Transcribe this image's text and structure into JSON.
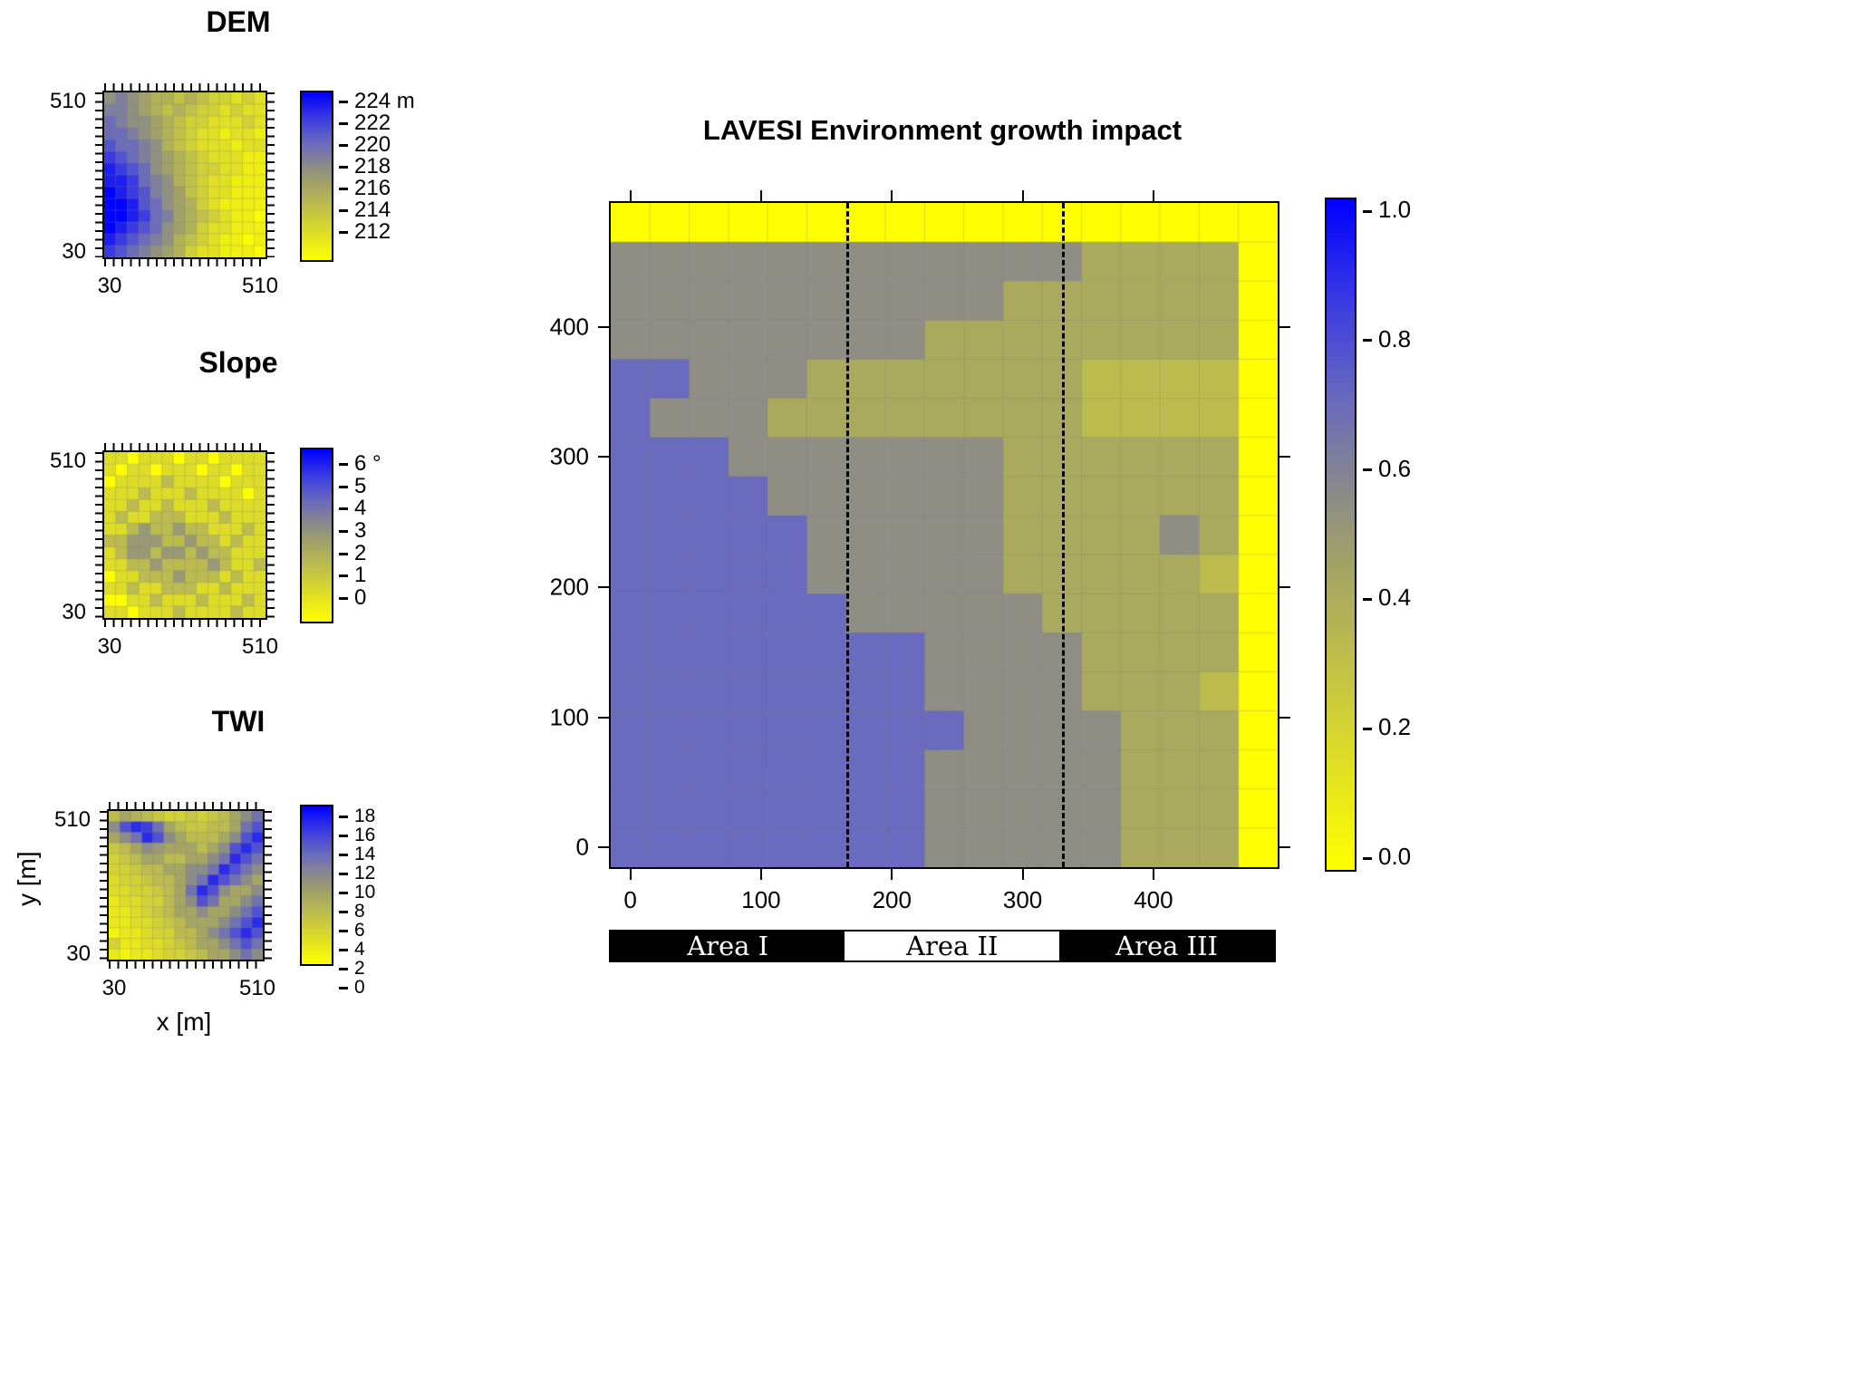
{
  "colormap_stops": [
    [
      0,
      "#FFFF00"
    ],
    [
      0.33,
      "#BCBC4E"
    ],
    [
      0.45,
      "#A4A465"
    ],
    [
      0.55,
      "#8E8E85"
    ],
    [
      0.7,
      "#6A6ABE"
    ],
    [
      0.85,
      "#3A3AE2"
    ],
    [
      1,
      "#0000FF"
    ]
  ],
  "axis_labels": {
    "x": "x [m]",
    "y": "y [m]"
  },
  "panels": {
    "dem": {
      "title": "DEM",
      "y_top": "510",
      "y_bottom": "30",
      "x_left": "30",
      "x_right": "510",
      "colorbar_labels": [
        "224 m",
        "222",
        "220",
        "218",
        "216",
        "214",
        "212"
      ]
    },
    "slope": {
      "title": "Slope",
      "y_top": "510",
      "y_bottom": "30",
      "x_left": "30",
      "x_right": "510",
      "colorbar_labels": [
        "6 °",
        "5",
        "4",
        "3",
        "2",
        "1",
        "0"
      ]
    },
    "twi": {
      "title": "TWI",
      "y_top": "510",
      "y_bottom": "30",
      "x_left": "30",
      "x_right": "510",
      "colorbar_labels": [
        "18",
        "16",
        "14",
        "12",
        "10",
        "8",
        "6",
        "4",
        "2",
        "0"
      ]
    },
    "main": {
      "title": "LAVESI Environment growth impact",
      "x_tick_labels": [
        "0",
        "100",
        "200",
        "300",
        "400"
      ],
      "y_tick_labels": [
        "0",
        "100",
        "200",
        "300",
        "400"
      ],
      "colorbar_labels": [
        "1.0",
        "0.8",
        "0.6",
        "0.4",
        "0.2",
        "0.0"
      ],
      "areas": [
        {
          "label": "Area I",
          "bg": "#000000",
          "fg": "#ffffff"
        },
        {
          "label": "Area II",
          "bg": "#ffffff",
          "fg": "#000000"
        },
        {
          "label": "Area III",
          "bg": "#000000",
          "fg": "#ffffff"
        }
      ]
    }
  },
  "chart_data": [
    {
      "id": "dem",
      "type": "heatmap",
      "title": "DEM",
      "x_range": [
        30,
        510
      ],
      "y_range": [
        30,
        510
      ],
      "zlim": [
        211,
        224
      ],
      "z_unit": "m",
      "colorbar_ticks": [
        212,
        214,
        216,
        218,
        220,
        222,
        224
      ],
      "values": [
        [
          218,
          219,
          218,
          217,
          216,
          216,
          215,
          216,
          215,
          214,
          214,
          213,
          214,
          213
        ],
        [
          219,
          219,
          218,
          217,
          216,
          215,
          216,
          215,
          214,
          214,
          213,
          214,
          213,
          213
        ],
        [
          220,
          219,
          218,
          218,
          217,
          216,
          215,
          214,
          214,
          213,
          213,
          213,
          214,
          213
        ],
        [
          220,
          220,
          219,
          218,
          217,
          216,
          215,
          214,
          213,
          213,
          212,
          213,
          213,
          212
        ],
        [
          221,
          220,
          220,
          219,
          218,
          216,
          215,
          214,
          213,
          213,
          213,
          212,
          213,
          213
        ],
        [
          222,
          221,
          220,
          219,
          218,
          217,
          216,
          215,
          214,
          213,
          213,
          213,
          212,
          212
        ],
        [
          223,
          222,
          221,
          220,
          218,
          217,
          216,
          215,
          214,
          214,
          213,
          213,
          212,
          212
        ],
        [
          223,
          223,
          222,
          220,
          219,
          218,
          216,
          215,
          214,
          213,
          213,
          212,
          212,
          212
        ],
        [
          224,
          223,
          222,
          221,
          219,
          218,
          217,
          215,
          214,
          213,
          213,
          212,
          212,
          212
        ],
        [
          224,
          224,
          223,
          221,
          220,
          218,
          217,
          216,
          214,
          213,
          212,
          212,
          212,
          212
        ],
        [
          224,
          224,
          223,
          222,
          220,
          219,
          217,
          216,
          215,
          214,
          213,
          212,
          212,
          211
        ],
        [
          224,
          223,
          222,
          221,
          220,
          218,
          217,
          216,
          214,
          213,
          213,
          212,
          212,
          212
        ],
        [
          223,
          222,
          221,
          220,
          219,
          218,
          216,
          215,
          214,
          213,
          212,
          212,
          211,
          212
        ],
        [
          222,
          221,
          220,
          219,
          218,
          217,
          216,
          214,
          213,
          213,
          212,
          212,
          212,
          211
        ]
      ]
    },
    {
      "id": "slope",
      "type": "heatmap",
      "title": "Slope",
      "x_range": [
        30,
        510
      ],
      "y_range": [
        30,
        510
      ],
      "zlim": [
        0,
        6
      ],
      "z_unit": "degrees",
      "colorbar_ticks": [
        0,
        1,
        2,
        3,
        4,
        5,
        6
      ],
      "values": [
        [
          1,
          1,
          0,
          1,
          1,
          1,
          0,
          1,
          1,
          0,
          1,
          1,
          1,
          1
        ],
        [
          1,
          0,
          1,
          1,
          0,
          1,
          1,
          1,
          0,
          1,
          1,
          0,
          1,
          1
        ],
        [
          0,
          1,
          1,
          1,
          1,
          2,
          1,
          1,
          1,
          1,
          0,
          1,
          1,
          1
        ],
        [
          1,
          1,
          1,
          2,
          1,
          1,
          1,
          2,
          1,
          1,
          1,
          1,
          0,
          1
        ],
        [
          1,
          1,
          2,
          1,
          1,
          2,
          1,
          1,
          1,
          2,
          1,
          1,
          1,
          1
        ],
        [
          1,
          2,
          1,
          1,
          2,
          2,
          2,
          1,
          1,
          1,
          2,
          1,
          1,
          1
        ],
        [
          1,
          1,
          2,
          3,
          2,
          2,
          3,
          2,
          2,
          1,
          1,
          1,
          2,
          1
        ],
        [
          2,
          2,
          3,
          3,
          3,
          2,
          2,
          3,
          2,
          2,
          1,
          2,
          1,
          1
        ],
        [
          1,
          2,
          3,
          3,
          2,
          3,
          3,
          2,
          3,
          2,
          2,
          1,
          1,
          1
        ],
        [
          1,
          1,
          2,
          2,
          3,
          2,
          2,
          2,
          2,
          3,
          2,
          1,
          1,
          2
        ],
        [
          0,
          1,
          1,
          2,
          2,
          2,
          3,
          2,
          2,
          2,
          1,
          2,
          1,
          1
        ],
        [
          1,
          1,
          2,
          1,
          1,
          2,
          2,
          2,
          1,
          1,
          2,
          1,
          1,
          1
        ],
        [
          0,
          0,
          1,
          1,
          2,
          1,
          1,
          1,
          2,
          1,
          1,
          1,
          2,
          1
        ],
        [
          1,
          1,
          0,
          1,
          1,
          1,
          2,
          1,
          1,
          1,
          1,
          2,
          1,
          1
        ]
      ]
    },
    {
      "id": "twi",
      "type": "heatmap",
      "title": "TWI",
      "x_range": [
        30,
        510
      ],
      "y_range": [
        30,
        510
      ],
      "zlim": [
        0,
        18
      ],
      "colorbar_ticks": [
        0,
        2,
        4,
        6,
        8,
        10,
        12,
        14,
        16,
        18
      ],
      "values": [
        [
          6,
          8,
          7,
          6,
          5,
          4,
          4,
          5,
          4,
          5,
          6,
          8,
          10,
          12
        ],
        [
          10,
          14,
          16,
          15,
          12,
          8,
          6,
          5,
          5,
          6,
          6,
          8,
          12,
          14
        ],
        [
          8,
          10,
          12,
          16,
          14,
          10,
          8,
          6,
          6,
          6,
          8,
          10,
          14,
          16
        ],
        [
          5,
          6,
          8,
          10,
          9,
          8,
          8,
          8,
          6,
          8,
          10,
          14,
          16,
          14
        ],
        [
          4,
          5,
          6,
          8,
          8,
          6,
          6,
          8,
          8,
          10,
          12,
          16,
          14,
          12
        ],
        [
          4,
          4,
          5,
          6,
          6,
          8,
          8,
          10,
          10,
          12,
          16,
          14,
          12,
          10
        ],
        [
          3,
          4,
          4,
          5,
          6,
          6,
          8,
          10,
          12,
          16,
          14,
          12,
          10,
          8
        ],
        [
          3,
          3,
          4,
          4,
          5,
          6,
          8,
          12,
          16,
          14,
          10,
          8,
          8,
          10
        ],
        [
          2,
          3,
          3,
          4,
          4,
          6,
          8,
          10,
          14,
          12,
          8,
          8,
          10,
          12
        ],
        [
          2,
          2,
          3,
          4,
          5,
          6,
          8,
          8,
          10,
          8,
          8,
          10,
          12,
          14
        ],
        [
          2,
          2,
          3,
          3,
          4,
          5,
          6,
          8,
          8,
          8,
          10,
          12,
          14,
          16
        ],
        [
          1,
          2,
          2,
          3,
          4,
          4,
          6,
          6,
          8,
          10,
          12,
          14,
          16,
          14
        ],
        [
          4,
          2,
          2,
          3,
          3,
          4,
          5,
          6,
          8,
          8,
          10,
          12,
          14,
          12
        ],
        [
          2,
          1,
          2,
          2,
          3,
          4,
          4,
          5,
          6,
          8,
          8,
          10,
          12,
          10
        ]
      ]
    },
    {
      "id": "growth",
      "type": "heatmap",
      "title": "LAVESI Environment growth impact",
      "x_range": [
        -15,
        495
      ],
      "y_range": [
        -15,
        495
      ],
      "x_ticks": [
        0,
        100,
        200,
        300,
        400
      ],
      "y_ticks": [
        0,
        100,
        200,
        300,
        400
      ],
      "zlim": [
        0,
        1
      ],
      "colorbar_ticks": [
        0,
        0.2,
        0.4,
        0.6,
        0.8,
        1.0
      ],
      "dashed_boundaries_x": [
        165,
        330
      ],
      "areas": [
        {
          "label": "Area I",
          "x": [
            -15,
            165
          ]
        },
        {
          "label": "Area II",
          "x": [
            165,
            330
          ]
        },
        {
          "label": "Area III",
          "x": [
            330,
            495
          ]
        }
      ],
      "values": [
        [
          0,
          0,
          0,
          0,
          0,
          0,
          0,
          0,
          0,
          0,
          0,
          0,
          0,
          0,
          0,
          0,
          0
        ],
        [
          0.55,
          0.55,
          0.55,
          0.55,
          0.55,
          0.55,
          0.55,
          0.55,
          0.55,
          0.55,
          0.55,
          0.55,
          0.42,
          0.42,
          0.42,
          0.42,
          0
        ],
        [
          0.55,
          0.55,
          0.55,
          0.55,
          0.55,
          0.55,
          0.55,
          0.55,
          0.55,
          0.55,
          0.42,
          0.42,
          0.42,
          0.42,
          0.42,
          0.42,
          0
        ],
        [
          0.55,
          0.55,
          0.55,
          0.55,
          0.55,
          0.55,
          0.55,
          0.55,
          0.42,
          0.42,
          0.42,
          0.42,
          0.42,
          0.42,
          0.42,
          0.42,
          0
        ],
        [
          0.7,
          0.7,
          0.55,
          0.55,
          0.55,
          0.42,
          0.42,
          0.42,
          0.42,
          0.42,
          0.42,
          0.42,
          0.33,
          0.33,
          0.33,
          0.33,
          0
        ],
        [
          0.7,
          0.55,
          0.55,
          0.55,
          0.42,
          0.42,
          0.42,
          0.42,
          0.42,
          0.42,
          0.42,
          0.42,
          0.33,
          0.33,
          0.33,
          0.33,
          0
        ],
        [
          0.7,
          0.7,
          0.7,
          0.55,
          0.55,
          0.55,
          0.55,
          0.55,
          0.55,
          0.55,
          0.42,
          0.42,
          0.42,
          0.42,
          0.42,
          0.42,
          0
        ],
        [
          0.7,
          0.7,
          0.7,
          0.7,
          0.55,
          0.55,
          0.55,
          0.55,
          0.55,
          0.55,
          0.42,
          0.42,
          0.42,
          0.42,
          0.42,
          0.42,
          0
        ],
        [
          0.7,
          0.7,
          0.7,
          0.7,
          0.7,
          0.55,
          0.55,
          0.55,
          0.55,
          0.55,
          0.42,
          0.42,
          0.42,
          0.42,
          0.55,
          0.42,
          0
        ],
        [
          0.7,
          0.7,
          0.7,
          0.7,
          0.7,
          0.55,
          0.55,
          0.55,
          0.55,
          0.55,
          0.42,
          0.42,
          0.42,
          0.42,
          0.42,
          0.33,
          0
        ],
        [
          0.7,
          0.7,
          0.7,
          0.7,
          0.7,
          0.7,
          0.55,
          0.55,
          0.55,
          0.55,
          0.55,
          0.42,
          0.42,
          0.42,
          0.42,
          0.42,
          0
        ],
        [
          0.7,
          0.7,
          0.7,
          0.7,
          0.7,
          0.7,
          0.7,
          0.7,
          0.55,
          0.55,
          0.55,
          0.55,
          0.42,
          0.42,
          0.42,
          0.42,
          0
        ],
        [
          0.7,
          0.7,
          0.7,
          0.7,
          0.7,
          0.7,
          0.7,
          0.7,
          0.55,
          0.55,
          0.55,
          0.55,
          0.42,
          0.42,
          0.42,
          0.33,
          0
        ],
        [
          0.7,
          0.7,
          0.7,
          0.7,
          0.7,
          0.7,
          0.7,
          0.7,
          0.7,
          0.55,
          0.55,
          0.55,
          0.55,
          0.42,
          0.42,
          0.42,
          0
        ],
        [
          0.7,
          0.7,
          0.7,
          0.7,
          0.7,
          0.7,
          0.7,
          0.7,
          0.55,
          0.55,
          0.55,
          0.55,
          0.55,
          0.42,
          0.42,
          0.42,
          0
        ],
        [
          0.7,
          0.7,
          0.7,
          0.7,
          0.7,
          0.7,
          0.7,
          0.7,
          0.55,
          0.55,
          0.55,
          0.55,
          0.55,
          0.42,
          0.42,
          0.42,
          0
        ],
        [
          0.7,
          0.7,
          0.7,
          0.7,
          0.7,
          0.7,
          0.7,
          0.7,
          0.55,
          0.55,
          0.55,
          0.55,
          0.55,
          0.42,
          0.42,
          0.42,
          0
        ]
      ]
    }
  ]
}
